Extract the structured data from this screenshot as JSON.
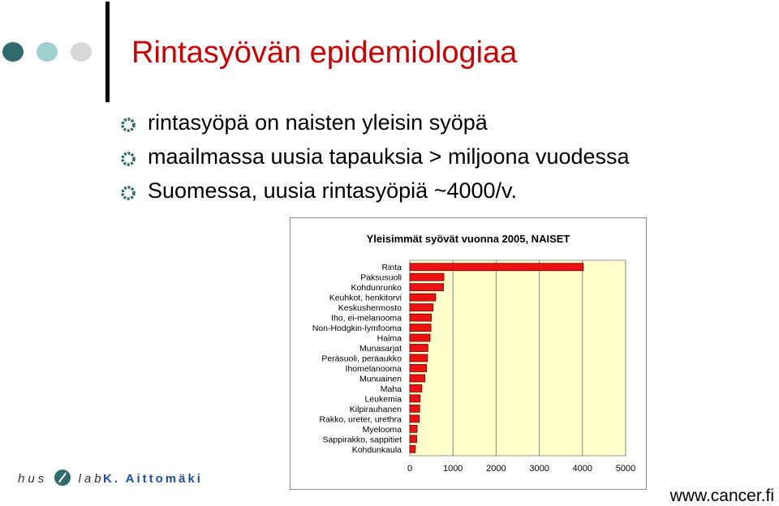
{
  "slide": {
    "title": "Rintasyövän epidemiologiaa",
    "bullets": [
      "rintasyöpä on naisten yleisin syöpä",
      "maailmassa uusia tapauksia > miljoona vuodessa",
      "Suomessa, uusia rintasyöpiä ~4000/v."
    ],
    "colors": {
      "title": "#cc0000",
      "dot_dark": "#2f6b6b",
      "dot_mid": "#9fcfd0",
      "dot_light": "#d9d9d9",
      "bar": "#ee1111",
      "plot_bg": "#ffffcc"
    }
  },
  "footer": {
    "logo_left": "hus",
    "logo_right": "lab",
    "logo_icon": "huslab-emblem-icon",
    "author": "K. Aittomäki",
    "url": "www.cancer.fi"
  },
  "chart_data": {
    "type": "bar",
    "orientation": "horizontal",
    "title": "Yleisimmät syövät vuonna 2005, NAISET",
    "categories": [
      "Rinta",
      "Paksusuoli",
      "Kohdunrunko",
      "Keuhkot, henkitorvi",
      "Keskushermosto",
      "Iho, ei-melanooma",
      "Non-Hodgkin-lymfooma",
      "Haima",
      "Munasarjat",
      "Peräsuoli, peräaukko",
      "Ihomelanooma",
      "Munuainen",
      "Maha",
      "Leukemia",
      "Kilpirauhanen",
      "Rakko, ureter, urethra",
      "Myelooma",
      "Sappirakko, sappitiet",
      "Kohdunkaula"
    ],
    "values": [
      4020,
      790,
      780,
      600,
      540,
      500,
      490,
      470,
      420,
      410,
      390,
      350,
      280,
      240,
      230,
      220,
      170,
      160,
      130
    ],
    "xticks": [
      "0",
      "1000",
      "2000",
      "3000",
      "4000",
      "5000"
    ],
    "xlim": [
      0,
      5000
    ],
    "grid": true
  }
}
